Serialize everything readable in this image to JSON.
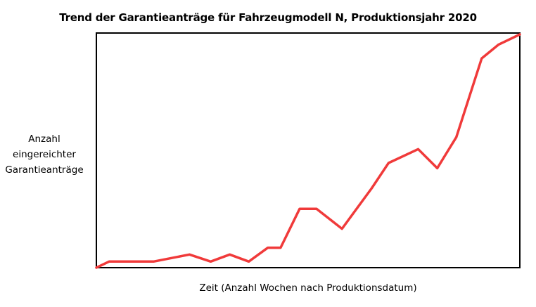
{
  "chart_data": {
    "type": "line",
    "title": "Trend der Garantieanträge für Fahrzeugmodell N, Produktionsjahr 2020",
    "xlabel": "Zeit (Anzahl Wochen nach Produktionsdatum)",
    "ylabel": "Anzahl eingereichter Garantieanträge",
    "grid": false,
    "legend": "none",
    "xlim": [
      0,
      100
    ],
    "ylim": [
      0,
      100
    ],
    "series": [
      {
        "color": "#f03a3a",
        "x": [
          0,
          3,
          13.5,
          22,
          27,
          31.5,
          36,
          40.5,
          43.5,
          48,
          52,
          58,
          65,
          69,
          76,
          80.5,
          85,
          91,
          95,
          100
        ],
        "y": [
          0,
          2.6,
          2.6,
          5.6,
          2.6,
          5.6,
          2.6,
          8.5,
          8.5,
          25.1,
          25.1,
          16.6,
          33.8,
          44.6,
          50.5,
          42.4,
          55.6,
          89.2,
          95.1,
          99.4
        ]
      }
    ]
  }
}
